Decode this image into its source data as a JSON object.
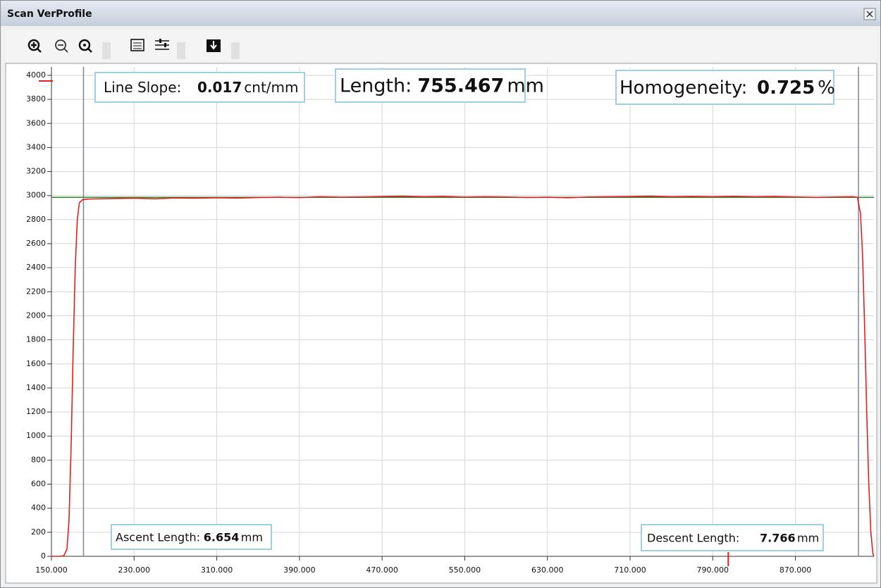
{
  "window": {
    "title": "Scan VerProfile"
  },
  "chart_data": {
    "type": "line",
    "x": [
      150,
      158,
      162,
      165,
      167,
      169,
      171,
      173,
      175,
      177,
      180,
      184,
      190,
      210,
      230,
      250,
      270,
      290,
      310,
      330,
      350,
      370,
      390,
      410,
      430,
      450,
      470,
      490,
      510,
      530,
      550,
      570,
      590,
      610,
      630,
      650,
      670,
      690,
      710,
      730,
      750,
      770,
      790,
      810,
      830,
      850,
      870,
      890,
      910,
      925,
      930,
      933,
      935,
      937,
      939,
      941,
      943,
      945,
      946
    ],
    "series": [
      {
        "color": "#e02020",
        "values": [
          0,
          0,
          5,
          60,
          300,
          900,
          1700,
          2400,
          2800,
          2940,
          2965,
          2970,
          2972,
          2975,
          2978,
          2973,
          2980,
          2978,
          2982,
          2979,
          2984,
          2986,
          2983,
          2990,
          2986,
          2988,
          2992,
          2995,
          2990,
          2993,
          2987,
          2990,
          2988,
          2984,
          2986,
          2982,
          2988,
          2990,
          2992,
          2995,
          2990,
          2993,
          2990,
          2994,
          2990,
          2992,
          2988,
          2985,
          2988,
          2990,
          2985,
          2850,
          2500,
          1900,
          1200,
          600,
          200,
          20,
          0
        ]
      }
    ],
    "xlim": [
      150,
      946
    ],
    "ylim": [
      0,
      4070
    ],
    "xticks": [
      {
        "value": 150,
        "label": "150.000"
      },
      {
        "value": 230,
        "label": "230.000"
      },
      {
        "value": 310,
        "label": "310.000"
      },
      {
        "value": 390,
        "label": "390.000"
      },
      {
        "value": 470,
        "label": "470.000"
      },
      {
        "value": 550,
        "label": "550.000"
      },
      {
        "value": 630,
        "label": "630.000"
      },
      {
        "value": 710,
        "label": "710.000"
      },
      {
        "value": 790,
        "label": "790.000"
      },
      {
        "value": 870,
        "label": "870.000"
      }
    ],
    "yticks": [
      0,
      200,
      400,
      600,
      800,
      1000,
      1200,
      1400,
      1600,
      1800,
      2000,
      2200,
      2400,
      2600,
      2800,
      3000,
      3200,
      3400,
      3600,
      3800,
      4000
    ],
    "grid": true,
    "reference_line": {
      "value": 2985,
      "color": "#2e8b2e"
    },
    "bound_markers_x": [
      181,
      931
    ],
    "cursor_x": 805,
    "cursor_y": 3953,
    "annotations": [
      {
        "label": "Line Slope:",
        "value": "0.017",
        "unit": "cnt/mm"
      },
      {
        "label": "Length:",
        "value": "755.467",
        "unit": "mm"
      },
      {
        "label": "Homogeneity:",
        "value": "0.725",
        "unit": "%"
      },
      {
        "label": "Ascent Length:",
        "value": "6.654",
        "unit": "mm"
      },
      {
        "label": "Descent Length:",
        "value": "7.766",
        "unit": "mm"
      }
    ]
  }
}
